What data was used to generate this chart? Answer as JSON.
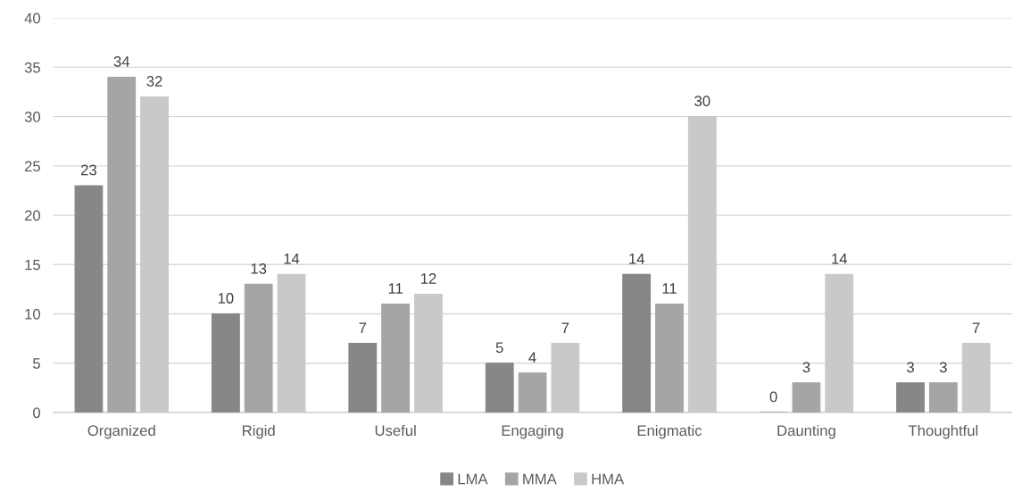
{
  "chart_data": {
    "type": "bar",
    "categories": [
      "Organized",
      "Rigid",
      "Useful",
      "Engaging",
      "Enigmatic",
      "Daunting",
      "Thoughtful"
    ],
    "series": [
      {
        "name": "LMA",
        "color": "#878787",
        "values": [
          23,
          10,
          7,
          5,
          14,
          0,
          3
        ]
      },
      {
        "name": "MMA",
        "color": "#a5a5a5",
        "values": [
          34,
          13,
          11,
          4,
          11,
          3,
          3
        ]
      },
      {
        "name": "HMA",
        "color": "#c9c9c9",
        "values": [
          32,
          14,
          12,
          7,
          30,
          14,
          7
        ]
      }
    ],
    "ylim": [
      0,
      40
    ],
    "yticks": [
      0,
      5,
      10,
      15,
      20,
      25,
      30,
      35,
      40
    ],
    "grid": "y",
    "legend": "bottom",
    "data_labels": true
  }
}
